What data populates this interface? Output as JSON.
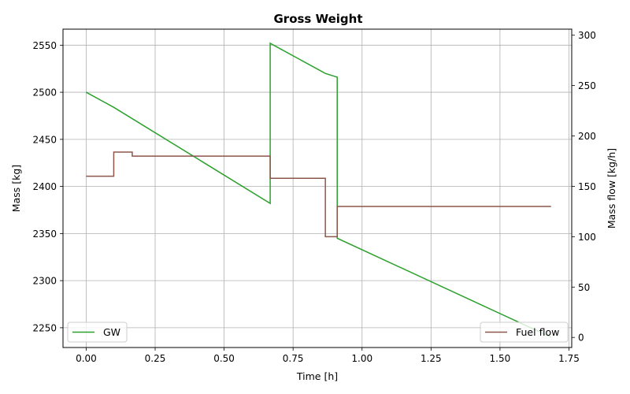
{
  "chart_data": {
    "type": "line",
    "title": "Gross Weight",
    "xlabel": "Time [h]",
    "ylabel": "Mass [kg]",
    "y2label": "Mass flow [kg/h]",
    "xlim": [
      -0.084,
      1.76
    ],
    "ylim": [
      2229,
      2567
    ],
    "y2lim": [
      -10,
      306
    ],
    "xticks": [
      0.0,
      0.25,
      0.5,
      0.75,
      1.0,
      1.25,
      1.5,
      1.75
    ],
    "xtick_labels": [
      "0.00",
      "0.25",
      "0.50",
      "0.75",
      "1.00",
      "1.25",
      "1.50",
      "1.75"
    ],
    "yticks": [
      2250,
      2300,
      2350,
      2400,
      2450,
      2500,
      2550
    ],
    "ytick_labels": [
      "2250",
      "2300",
      "2350",
      "2400",
      "2450",
      "2500",
      "2550"
    ],
    "y2ticks": [
      0,
      50,
      100,
      150,
      200,
      250,
      300
    ],
    "y2tick_labels": [
      "0",
      "50",
      "100",
      "150",
      "200",
      "250",
      "300"
    ],
    "grid": true,
    "series": [
      {
        "name": "GW",
        "axis": "left",
        "color": "#2ca02c",
        "legend": "bottom-left",
        "x": [
          0.0,
          0.1,
          0.667,
          0.667,
          0.867,
          0.91,
          0.91,
          1.685
        ],
        "y": [
          2500,
          2484,
          2382,
          2552,
          2520,
          2516,
          2345,
          2240
        ]
      },
      {
        "name": "Fuel flow",
        "axis": "right",
        "color": "#8c564b",
        "legend": "bottom-right",
        "x": [
          0.0,
          0.1,
          0.1,
          0.167,
          0.167,
          0.667,
          0.667,
          0.867,
          0.867,
          0.91,
          0.91,
          1.685
        ],
        "y": [
          160,
          160,
          184,
          184,
          180,
          180,
          158,
          158,
          100,
          100,
          130,
          130
        ]
      }
    ]
  }
}
